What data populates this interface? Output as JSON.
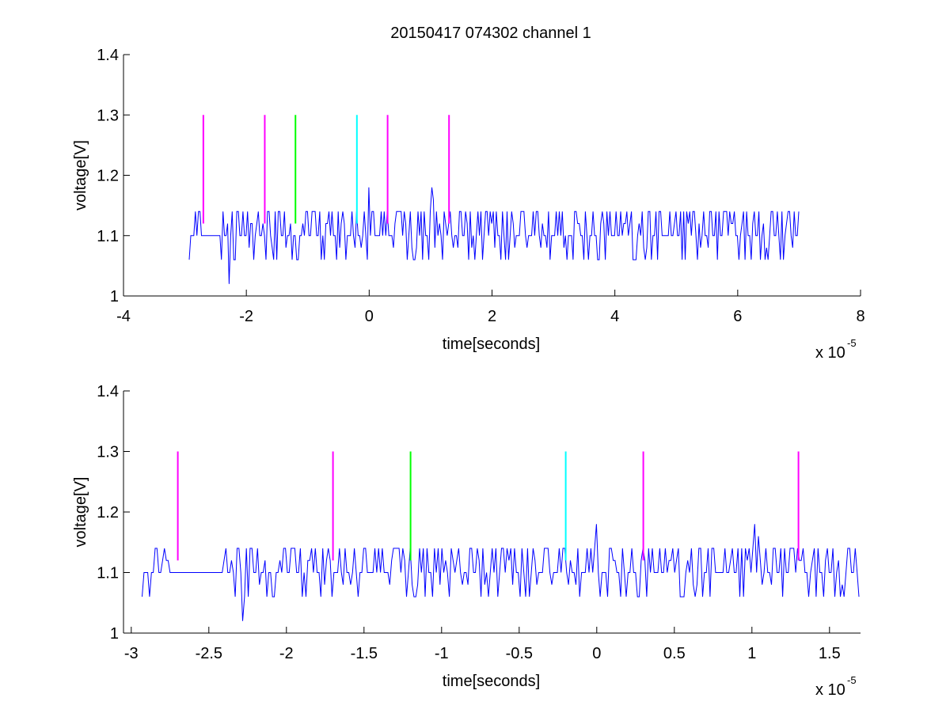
{
  "figure": {
    "title": "20150417 074302 channel 1"
  },
  "chart_data": [
    {
      "type": "line",
      "title": "20150417 074302 channel 1",
      "xlabel": "time[seconds]",
      "ylabel": "voltage[V]",
      "x_multiplier": "x 10",
      "x_exponent": "-5",
      "xlim": [
        -4,
        8
      ],
      "ylim": [
        1,
        1.4
      ],
      "xticks": [
        -4,
        -2,
        0,
        2,
        4,
        6,
        8
      ],
      "xtick_labels": [
        "-4",
        "-2",
        "0",
        "2",
        "4",
        "6",
        "8"
      ],
      "yticks": [
        1,
        1.1,
        1.2,
        1.3,
        1.4
      ],
      "ytick_labels": [
        "1",
        "1.1",
        "1.2",
        "1.3",
        "1.4"
      ],
      "grid": false,
      "signal": {
        "color": "#0000ff",
        "x_range": [
          -2.93,
          7.0
        ],
        "baseline": 1.1,
        "min": 1.02,
        "max": 1.18,
        "levels": [
          1.02,
          1.06,
          1.08,
          1.1,
          1.12,
          1.14,
          1.18
        ]
      },
      "markers": [
        {
          "x": -2.7,
          "y_from": 1.12,
          "y_to": 1.3,
          "color": "#ff00ff"
        },
        {
          "x": -1.7,
          "y_from": 1.12,
          "y_to": 1.3,
          "color": "#ff00ff"
        },
        {
          "x": -1.2,
          "y_from": 1.12,
          "y_to": 1.3,
          "color": "#00ff00"
        },
        {
          "x": -0.2,
          "y_from": 1.12,
          "y_to": 1.3,
          "color": "#00ffff"
        },
        {
          "x": 0.3,
          "y_from": 1.12,
          "y_to": 1.3,
          "color": "#ff00ff"
        },
        {
          "x": 1.3,
          "y_from": 1.12,
          "y_to": 1.3,
          "color": "#ff00ff"
        }
      ]
    },
    {
      "type": "line",
      "title": "",
      "xlabel": "time[seconds]",
      "ylabel": "voltage[V]",
      "x_multiplier": "x 10",
      "x_exponent": "-5",
      "xlim": [
        -3.05,
        1.7
      ],
      "ylim": [
        1,
        1.4
      ],
      "xticks": [
        -3,
        -2.5,
        -2,
        -1.5,
        -1,
        -0.5,
        0,
        0.5,
        1,
        1.5
      ],
      "xtick_labels": [
        "-3",
        "-2.5",
        "-2",
        "-1.5",
        "-1",
        "-0.5",
        "0",
        "0.5",
        "1",
        "1.5"
      ],
      "yticks": [
        1,
        1.1,
        1.2,
        1.3,
        1.4
      ],
      "ytick_labels": [
        "1",
        "1.1",
        "1.2",
        "1.3",
        "1.4"
      ],
      "grid": false,
      "signal": {
        "color": "#0000ff",
        "x_range": [
          -2.93,
          1.7
        ],
        "baseline": 1.1,
        "min": 1.02,
        "max": 1.18,
        "levels": [
          1.02,
          1.06,
          1.08,
          1.1,
          1.12,
          1.14,
          1.18
        ]
      },
      "markers": [
        {
          "x": -2.7,
          "y_from": 1.12,
          "y_to": 1.3,
          "color": "#ff00ff"
        },
        {
          "x": -1.7,
          "y_from": 1.12,
          "y_to": 1.3,
          "color": "#ff00ff"
        },
        {
          "x": -1.2,
          "y_from": 1.12,
          "y_to": 1.3,
          "color": "#00ff00"
        },
        {
          "x": -0.2,
          "y_from": 1.12,
          "y_to": 1.3,
          "color": "#00ffff"
        },
        {
          "x": 0.3,
          "y_from": 1.12,
          "y_to": 1.3,
          "color": "#ff00ff"
        },
        {
          "x": 1.3,
          "y_from": 1.12,
          "y_to": 1.3,
          "color": "#ff00ff"
        }
      ]
    }
  ]
}
